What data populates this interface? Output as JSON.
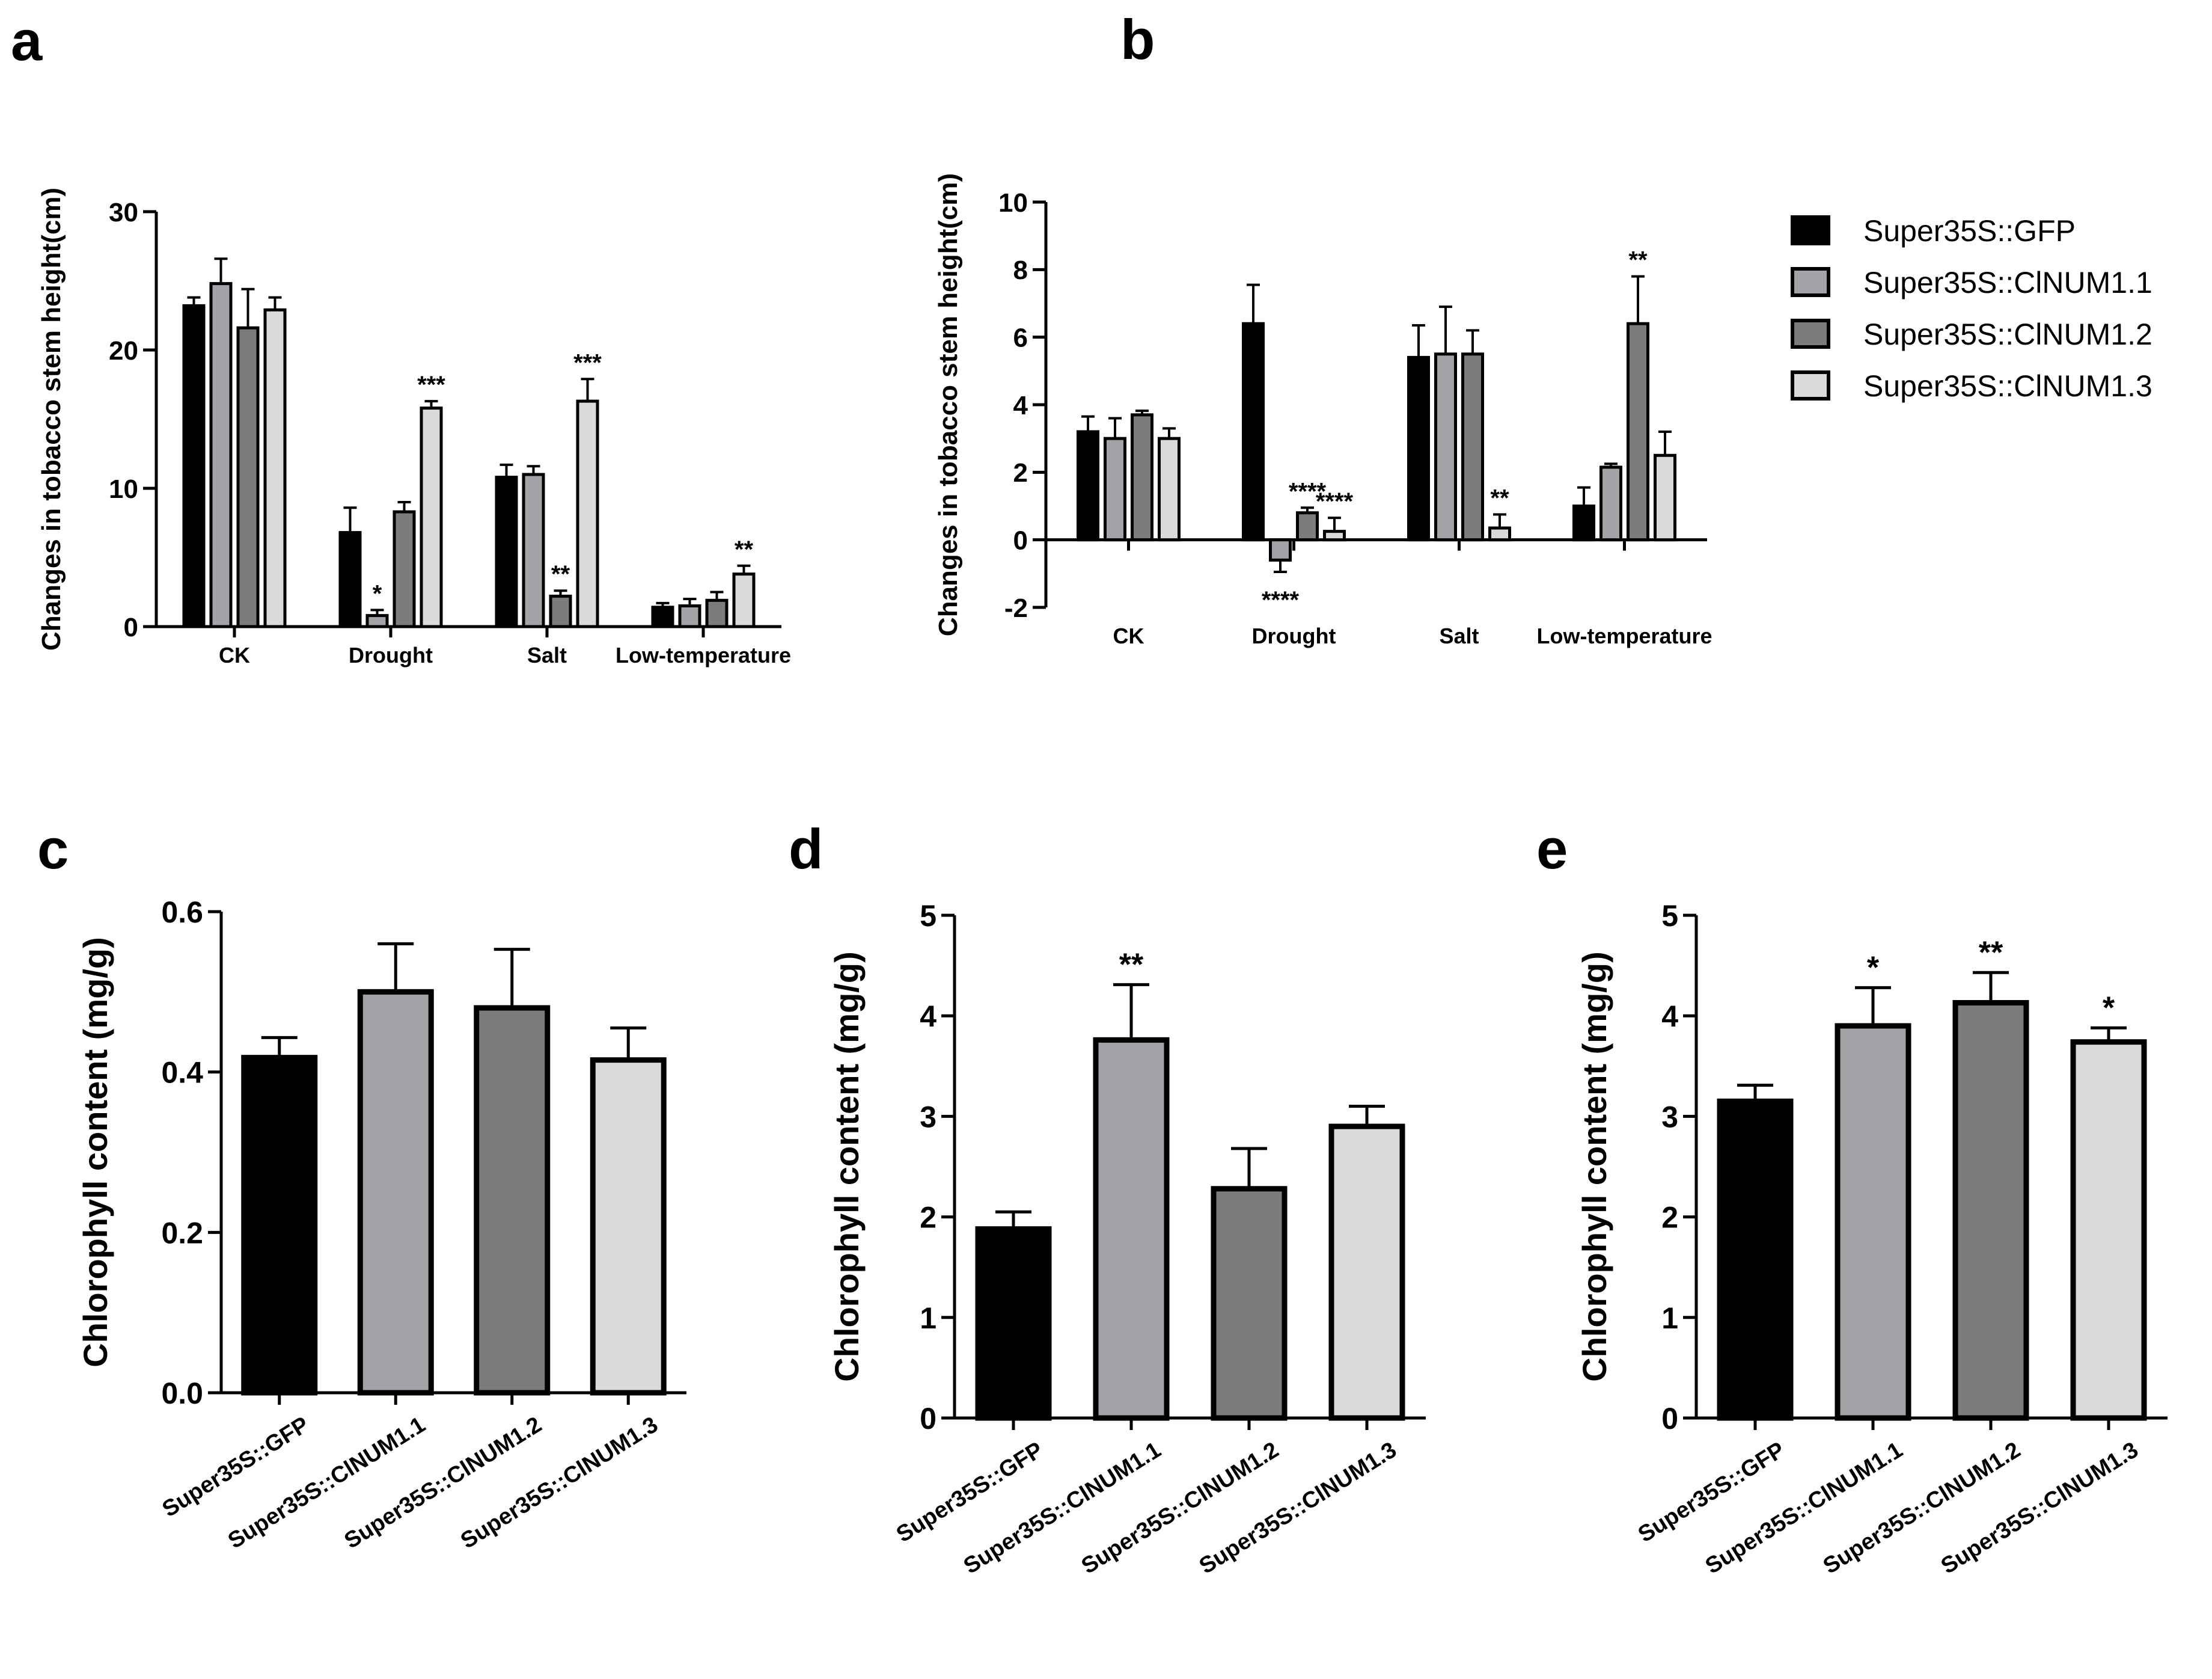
{
  "colors": {
    "Super35S::GFP": "#000000",
    "Super35S::ClNUM1.1": "#a3a3a7",
    "Super35S::ClNUM1.2": "#7c7c7c",
    "Super35S::ClNUM1.3": "#dadada"
  },
  "legend": [
    "Super35S::GFP",
    "Super35S::ClNUM1.1",
    "Super35S::ClNUM1.2",
    "Super35S::ClNUM1.3"
  ],
  "chart_data": [
    {
      "id": "a",
      "panel_label": "a",
      "type": "bar",
      "ylabel": "Changes in tobacco stem height(cm)",
      "ylim": [
        0,
        30
      ],
      "yticks": [
        0,
        10,
        20,
        30
      ],
      "categories": [
        "CK",
        "Drought",
        "Salt",
        "Low-temperature"
      ],
      "series": [
        {
          "name": "Super35S::GFP",
          "values": [
            23.2,
            6.8,
            10.8,
            1.4
          ],
          "errors": [
            0.6,
            1.8,
            0.9,
            0.3
          ],
          "sig": [
            "",
            "",
            "",
            ""
          ]
        },
        {
          "name": "Super35S::ClNUM1.1",
          "values": [
            24.8,
            0.8,
            11.0,
            1.5
          ],
          "errors": [
            1.8,
            0.4,
            0.6,
            0.5
          ],
          "sig": [
            "",
            "*",
            "",
            ""
          ]
        },
        {
          "name": "Super35S::ClNUM1.2",
          "values": [
            21.6,
            8.3,
            2.2,
            1.9
          ],
          "errors": [
            2.8,
            0.7,
            0.4,
            0.6
          ],
          "sig": [
            "",
            "",
            "**",
            ""
          ]
        },
        {
          "name": "Super35S::ClNUM1.3",
          "values": [
            22.9,
            15.8,
            16.3,
            3.8
          ],
          "errors": [
            0.9,
            0.5,
            1.6,
            0.6
          ],
          "sig": [
            "",
            "***",
            "***",
            "**"
          ]
        }
      ]
    },
    {
      "id": "b",
      "panel_label": "b",
      "type": "bar",
      "ylabel": "Changes in tobacco stem height(cm)",
      "ylim": [
        -2,
        10
      ],
      "yticks": [
        -2,
        0,
        2,
        4,
        6,
        8,
        10
      ],
      "categories": [
        "CK",
        "Drought",
        "Salt",
        "Low-temperature"
      ],
      "series": [
        {
          "name": "Super35S::GFP",
          "values": [
            3.2,
            6.4,
            5.4,
            1.0
          ],
          "errors": [
            0.45,
            1.15,
            0.95,
            0.55
          ],
          "sig": [
            "",
            "",
            "",
            ""
          ]
        },
        {
          "name": "Super35S::ClNUM1.1",
          "values": [
            3.0,
            -0.6,
            5.5,
            2.15
          ],
          "errors": [
            0.6,
            0.35,
            1.4,
            0.1
          ],
          "sig": [
            "",
            "****",
            "",
            ""
          ]
        },
        {
          "name": "Super35S::ClNUM1.2",
          "values": [
            3.7,
            0.8,
            5.5,
            6.4
          ],
          "errors": [
            0.12,
            0.15,
            0.7,
            1.4
          ],
          "sig": [
            "",
            "****",
            "",
            "**"
          ]
        },
        {
          "name": "Super35S::ClNUM1.3",
          "values": [
            3.0,
            0.25,
            0.35,
            2.5
          ],
          "errors": [
            0.3,
            0.4,
            0.4,
            0.7
          ],
          "sig": [
            "",
            "****",
            "**",
            ""
          ]
        }
      ]
    },
    {
      "id": "c",
      "panel_label": "c",
      "type": "bar",
      "ylabel": "Chlorophyll content (mg/g)",
      "ylim": [
        0,
        0.6
      ],
      "yticks": [
        "0.0",
        "0.2",
        "0.4",
        "0.6"
      ],
      "categories": [
        "Super35S::GFP",
        "Super35S::ClNUM1.1",
        "Super35S::ClNUM1.2",
        "Super35S::ClNUM1.3"
      ],
      "values": [
        0.418,
        0.5,
        0.48,
        0.415
      ],
      "errors": [
        0.025,
        0.06,
        0.073,
        0.04
      ],
      "sig": [
        "",
        "",
        "",
        ""
      ]
    },
    {
      "id": "d",
      "panel_label": "d",
      "type": "bar",
      "ylabel": "Chlorophyll content (mg/g)",
      "ylim": [
        0,
        5
      ],
      "yticks": [
        0,
        1,
        2,
        3,
        4,
        5
      ],
      "categories": [
        "Super35S::GFP",
        "Super35S::ClNUM1.1",
        "Super35S::ClNUM1.2",
        "Super35S::ClNUM1.3"
      ],
      "values": [
        1.88,
        3.76,
        2.28,
        2.9
      ],
      "errors": [
        0.17,
        0.55,
        0.4,
        0.2
      ],
      "sig": [
        "",
        "**",
        "",
        ""
      ]
    },
    {
      "id": "e",
      "panel_label": "e",
      "type": "bar",
      "ylabel": "Chlorophyll content (mg/g)",
      "ylim": [
        0,
        5
      ],
      "yticks": [
        0,
        1,
        2,
        3,
        4,
        5
      ],
      "categories": [
        "Super35S::GFP",
        "Super35S::ClNUM1.1",
        "Super35S::ClNUM1.2",
        "Super35S::ClNUM1.3"
      ],
      "values": [
        3.15,
        3.9,
        4.13,
        3.74
      ],
      "errors": [
        0.16,
        0.38,
        0.3,
        0.14
      ],
      "sig": [
        "",
        "*",
        "**",
        "*"
      ]
    }
  ]
}
